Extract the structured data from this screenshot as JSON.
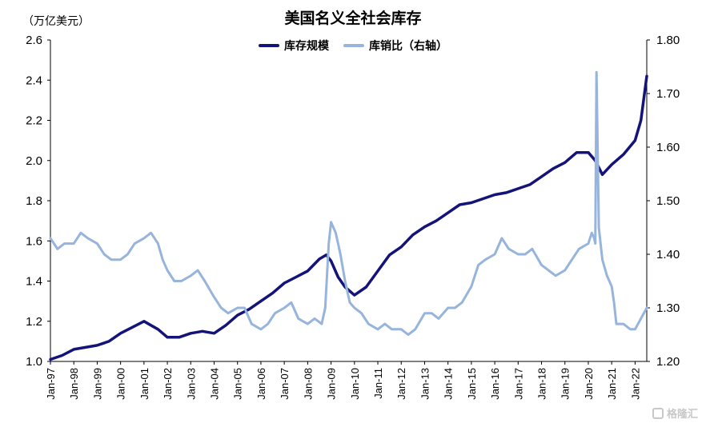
{
  "chart_data": {
    "type": "line",
    "title": "美国名义全社会库存",
    "ylabel": "（万亿美元）",
    "ylim": [
      1.0,
      2.6
    ],
    "yticks": [
      "1.0",
      "1.2",
      "1.4",
      "1.6",
      "1.8",
      "2.0",
      "2.2",
      "2.4",
      "2.6"
    ],
    "y2lim": [
      1.2,
      1.8
    ],
    "y2ticks": [
      "1.20",
      "1.30",
      "1.40",
      "1.50",
      "1.60",
      "1.70",
      "1.80"
    ],
    "x_range": [
      1997.0,
      2022.5
    ],
    "categories": [
      "Jan-97",
      "Jan-98",
      "Jan-99",
      "Jan-00",
      "Jan-01",
      "Jan-02",
      "Jan-03",
      "Jan-04",
      "Jan-05",
      "Jan-06",
      "Jan-07",
      "Jan-08",
      "Jan-09",
      "Jan-10",
      "Jan-11",
      "Jan-12",
      "Jan-13",
      "Jan-14",
      "Jan-15",
      "Jan-16",
      "Jan-17",
      "Jan-18",
      "Jan-19",
      "Jan-20",
      "Jan-21",
      "Jan-22"
    ],
    "grid": false,
    "legend_position": "top-center",
    "series": [
      {
        "name": "库存规模",
        "axis": "left",
        "color": "#13137a",
        "x": [
          1997.0,
          1997.5,
          1998.0,
          1998.5,
          1999.0,
          1999.5,
          2000.0,
          2000.5,
          2001.0,
          2001.3,
          2001.6,
          2002.0,
          2002.5,
          2003.0,
          2003.5,
          2004.0,
          2004.5,
          2005.0,
          2005.5,
          2006.0,
          2006.5,
          2007.0,
          2007.5,
          2008.0,
          2008.5,
          2008.8,
          2009.0,
          2009.3,
          2009.6,
          2010.0,
          2010.5,
          2011.0,
          2011.5,
          2012.0,
          2012.5,
          2013.0,
          2013.5,
          2014.0,
          2014.5,
          2015.0,
          2015.5,
          2016.0,
          2016.5,
          2017.0,
          2017.5,
          2018.0,
          2018.5,
          2019.0,
          2019.5,
          2020.0,
          2020.3,
          2020.6,
          2021.0,
          2021.5,
          2022.0,
          2022.25,
          2022.5
        ],
        "values": [
          1.01,
          1.03,
          1.06,
          1.07,
          1.08,
          1.1,
          1.14,
          1.17,
          1.2,
          1.18,
          1.16,
          1.12,
          1.12,
          1.14,
          1.15,
          1.14,
          1.18,
          1.23,
          1.26,
          1.3,
          1.34,
          1.39,
          1.42,
          1.45,
          1.51,
          1.53,
          1.5,
          1.42,
          1.37,
          1.33,
          1.37,
          1.45,
          1.53,
          1.57,
          1.63,
          1.67,
          1.7,
          1.74,
          1.78,
          1.79,
          1.81,
          1.83,
          1.84,
          1.86,
          1.88,
          1.92,
          1.96,
          1.99,
          2.04,
          2.04,
          2.0,
          1.93,
          1.98,
          2.03,
          2.1,
          2.2,
          2.42
        ]
      },
      {
        "name": "库销比（右轴）",
        "axis": "right",
        "color": "#96b4dc",
        "x": [
          1997.0,
          1997.3,
          1997.6,
          1998.0,
          1998.3,
          1998.6,
          1999.0,
          1999.3,
          1999.6,
          2000.0,
          2000.3,
          2000.6,
          2001.0,
          2001.3,
          2001.6,
          2001.8,
          2002.0,
          2002.3,
          2002.6,
          2003.0,
          2003.3,
          2003.6,
          2004.0,
          2004.3,
          2004.6,
          2005.0,
          2005.3,
          2005.6,
          2006.0,
          2006.3,
          2006.6,
          2007.0,
          2007.3,
          2007.6,
          2008.0,
          2008.3,
          2008.6,
          2008.75,
          2008.9,
          2009.0,
          2009.2,
          2009.4,
          2009.6,
          2009.8,
          2010.0,
          2010.3,
          2010.6,
          2011.0,
          2011.3,
          2011.6,
          2012.0,
          2012.3,
          2012.6,
          2013.0,
          2013.3,
          2013.6,
          2014.0,
          2014.3,
          2014.6,
          2015.0,
          2015.3,
          2015.6,
          2016.0,
          2016.3,
          2016.6,
          2017.0,
          2017.3,
          2017.6,
          2018.0,
          2018.3,
          2018.6,
          2019.0,
          2019.3,
          2019.6,
          2020.0,
          2020.15,
          2020.25,
          2020.3,
          2020.35,
          2020.45,
          2020.6,
          2020.8,
          2021.0,
          2021.1,
          2021.2,
          2021.5,
          2021.8,
          2022.0,
          2022.25,
          2022.5
        ],
        "values": [
          1.43,
          1.41,
          1.42,
          1.42,
          1.44,
          1.43,
          1.42,
          1.4,
          1.39,
          1.39,
          1.4,
          1.42,
          1.43,
          1.44,
          1.42,
          1.39,
          1.37,
          1.35,
          1.35,
          1.36,
          1.37,
          1.35,
          1.32,
          1.3,
          1.29,
          1.3,
          1.3,
          1.27,
          1.26,
          1.27,
          1.29,
          1.3,
          1.31,
          1.28,
          1.27,
          1.28,
          1.27,
          1.3,
          1.42,
          1.46,
          1.44,
          1.4,
          1.35,
          1.31,
          1.3,
          1.29,
          1.27,
          1.26,
          1.27,
          1.26,
          1.26,
          1.25,
          1.26,
          1.29,
          1.29,
          1.28,
          1.3,
          1.3,
          1.31,
          1.34,
          1.38,
          1.39,
          1.4,
          1.43,
          1.41,
          1.4,
          1.4,
          1.41,
          1.38,
          1.37,
          1.36,
          1.37,
          1.39,
          1.41,
          1.42,
          1.44,
          1.43,
          1.42,
          1.74,
          1.45,
          1.39,
          1.36,
          1.34,
          1.31,
          1.27,
          1.27,
          1.26,
          1.26,
          1.28,
          1.3
        ]
      }
    ]
  },
  "watermark_text": "格隆汇"
}
